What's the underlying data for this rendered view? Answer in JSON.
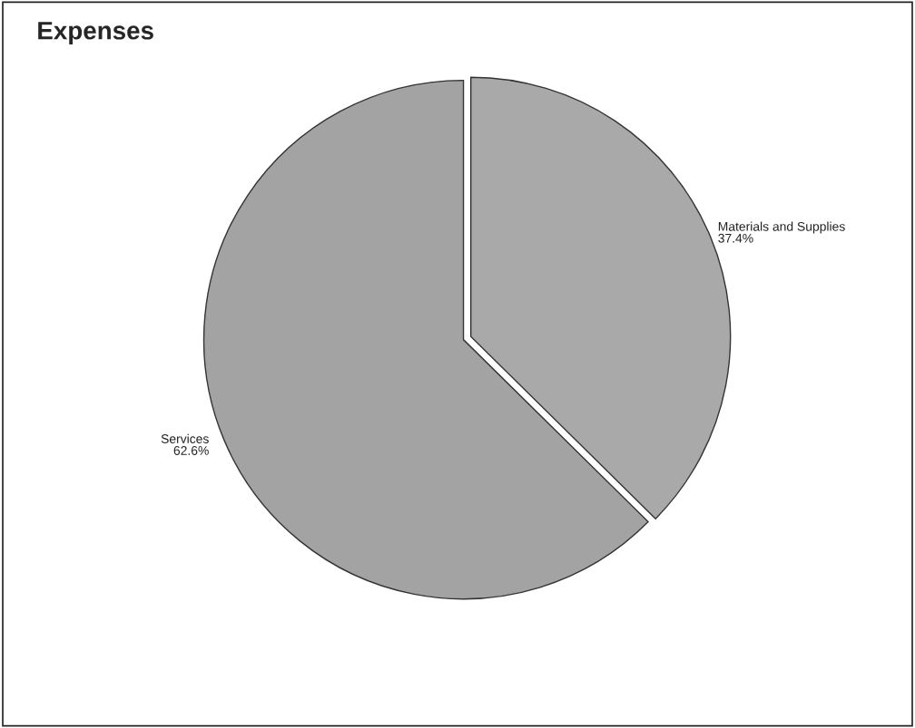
{
  "chart_data": {
    "type": "pie",
    "title": "Expenses",
    "categories": [
      "Materials and Supplies",
      "Services"
    ],
    "values": [
      37.4,
      62.6
    ],
    "value_labels": [
      "37.4%",
      "62.6%"
    ],
    "colors": [
      "#a9a9a9",
      "#a3a3a3"
    ],
    "legend": false
  }
}
